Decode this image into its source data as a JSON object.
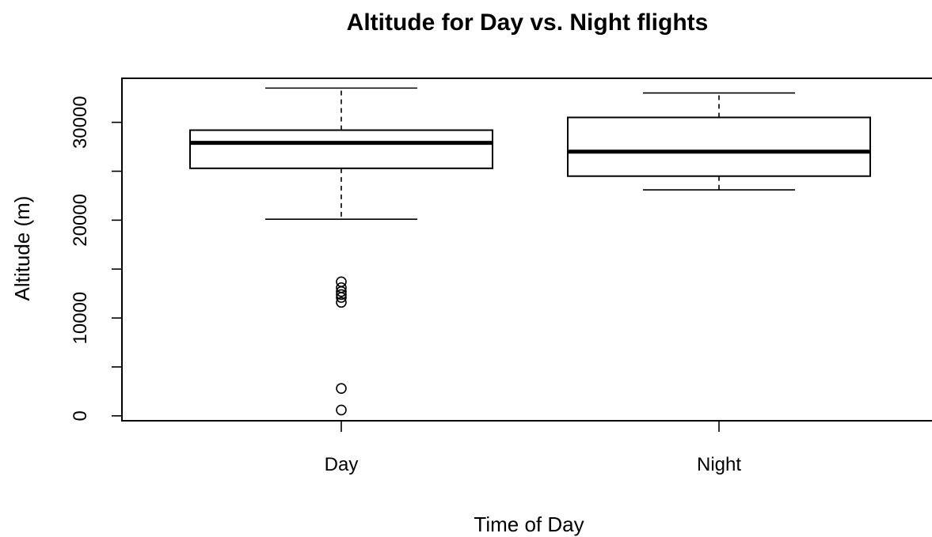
{
  "chart_data": {
    "type": "boxplot",
    "title": "Altitude for Day vs. Night flights",
    "xlabel": "Time of Day",
    "ylabel": "Altitude (m)",
    "ylim": [
      -500,
      34500
    ],
    "yticks": [
      0,
      5000,
      10000,
      15000,
      20000,
      25000,
      30000
    ],
    "ytick_labels": [
      "0",
      "",
      "10000",
      "",
      "20000",
      "",
      "30000"
    ],
    "categories": [
      "Day",
      "Night"
    ],
    "boxes": [
      {
        "category": "Day",
        "whisker_low": 20100,
        "q1": 25300,
        "median": 27900,
        "q3": 29200,
        "whisker_high": 33500,
        "outliers": [
          13700,
          13100,
          12700,
          12400,
          12100,
          11600,
          2800,
          600
        ]
      },
      {
        "category": "Night",
        "whisker_low": 23100,
        "q1": 24500,
        "median": 27000,
        "q3": 30500,
        "whisker_high": 33000,
        "outliers": []
      }
    ],
    "grid": false,
    "legend": "none"
  }
}
